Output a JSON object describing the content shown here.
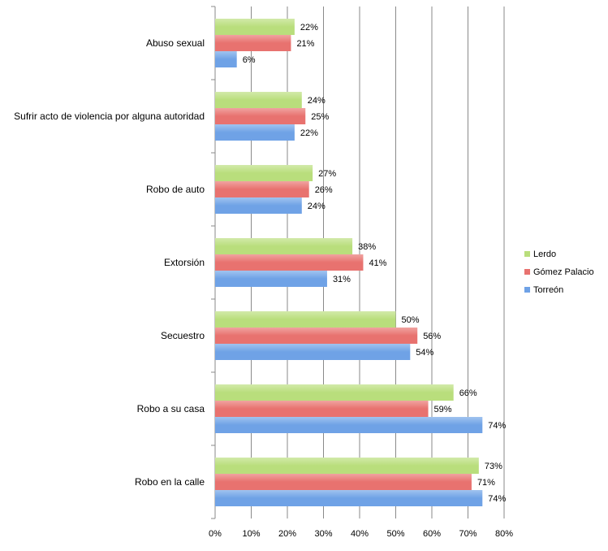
{
  "chart_data": {
    "type": "bar",
    "orientation": "horizontal",
    "categories": [
      "Abuso sexual",
      "Sufrir acto de violencia por alguna autoridad",
      "Robo de auto",
      "Extorsión",
      "Secuestro",
      "Robo a su casa",
      "Robo en la calle"
    ],
    "series": [
      {
        "name": "Lerdo",
        "values": [
          22,
          24,
          27,
          38,
          50,
          66,
          73
        ],
        "labels": [
          "22%",
          "24%",
          "27%",
          "38%",
          "50%",
          "66%",
          "73%"
        ]
      },
      {
        "name": "Gómez Palacio",
        "values": [
          21,
          25,
          26,
          41,
          56,
          59,
          71
        ],
        "labels": [
          "21%",
          "25%",
          "26%",
          "41%",
          "56%",
          "59%",
          "71%"
        ]
      },
      {
        "name": "Torreón",
        "values": [
          6,
          22,
          24,
          31,
          54,
          74,
          74
        ],
        "labels": [
          "6%",
          "22%",
          "24%",
          "31%",
          "54%",
          "74%",
          "74%"
        ]
      }
    ],
    "x_ticks": [
      "0%",
      "10%",
      "20%",
      "30%",
      "40%",
      "50%",
      "60%",
      "70%",
      "80%"
    ],
    "xlim": [
      0,
      80
    ],
    "grid": true,
    "legend_position": "right",
    "legend_order": [
      "Lerdo",
      "Gómez Palacio",
      "Torreón"
    ],
    "colors": {
      "Lerdo": "#b9de7c",
      "Gómez Palacio": "#e8726f",
      "Torreón": "#6fa2e6"
    }
  }
}
